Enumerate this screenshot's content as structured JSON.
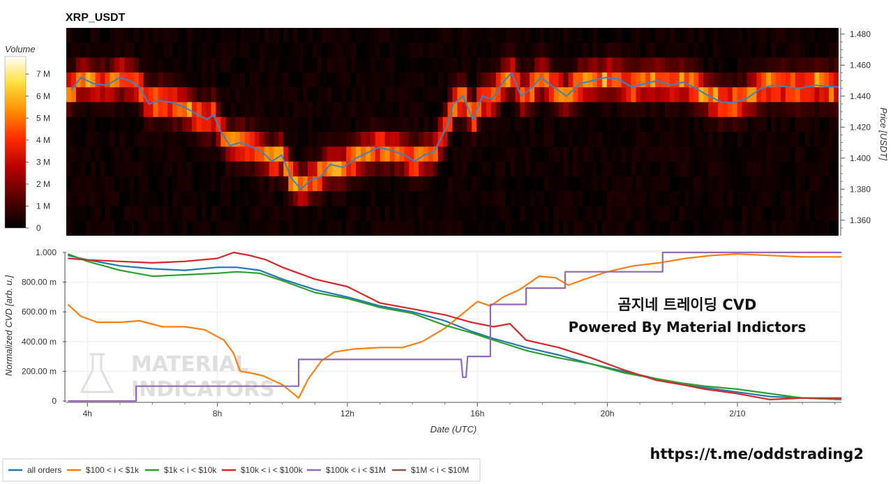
{
  "chart_data": [
    {
      "type": "heatmap",
      "title": "XRP_USDT",
      "ylabel": "Price [USDT]",
      "y_ticks": [
        "1.480",
        "1.460",
        "1.440",
        "1.420",
        "1.400",
        "1.380",
        "1.360"
      ],
      "y_tick_values": [
        1.48,
        1.46,
        1.44,
        1.42,
        1.4,
        1.38,
        1.36
      ],
      "ylim": [
        1.35,
        1.484
      ],
      "colorbar": {
        "label": "Volume",
        "ticks": [
          "7 M",
          "6 M",
          "5 M",
          "4 M",
          "3 M",
          "2 M",
          "1 M",
          "0"
        ],
        "tick_values": [
          7,
          6,
          5,
          4,
          3,
          2,
          1,
          0
        ],
        "range": [
          0,
          7.8
        ],
        "colormap": [
          "#000000",
          "#5a0000",
          "#b50000",
          "#ff2a00",
          "#ff8c00",
          "#ffe040",
          "#ffffff"
        ]
      },
      "price_line": {
        "color": "#3b82c4",
        "hours": [
          3.5,
          3.8,
          4.2,
          4.6,
          5.0,
          5.3,
          5.6,
          5.9,
          6.2,
          6.6,
          7.0,
          7.4,
          7.7,
          7.9,
          8.1,
          8.4,
          8.7,
          9.0,
          9.4,
          9.7,
          10.0,
          10.3,
          10.6,
          10.9,
          11.2,
          11.5,
          11.9,
          12.3,
          12.7,
          13.0,
          13.4,
          13.8,
          14.1,
          14.4,
          14.7,
          14.9,
          15.1,
          15.3,
          15.6,
          15.9,
          16.2,
          16.5,
          16.8,
          17.1,
          17.4,
          17.7,
          18.0,
          18.4,
          18.8,
          19.2,
          19.6,
          20.0,
          20.4,
          20.8,
          21.2,
          21.6,
          22.0,
          22.4,
          22.8,
          23.2,
          23.6,
          24.0,
          24.4,
          24.8,
          25.2,
          25.6,
          26.0,
          26.5,
          27.0,
          27.3
        ],
        "prices": [
          1.444,
          1.452,
          1.448,
          1.447,
          1.452,
          1.45,
          1.446,
          1.435,
          1.437,
          1.436,
          1.433,
          1.428,
          1.425,
          1.428,
          1.418,
          1.408,
          1.41,
          1.408,
          1.404,
          1.398,
          1.402,
          1.387,
          1.38,
          1.386,
          1.388,
          1.396,
          1.394,
          1.4,
          1.404,
          1.407,
          1.405,
          1.402,
          1.398,
          1.402,
          1.404,
          1.412,
          1.42,
          1.435,
          1.44,
          1.425,
          1.44,
          1.438,
          1.448,
          1.455,
          1.44,
          1.445,
          1.452,
          1.446,
          1.44,
          1.448,
          1.45,
          1.452,
          1.451,
          1.446,
          1.448,
          1.45,
          1.447,
          1.449,
          1.445,
          1.44,
          1.436,
          1.436,
          1.439,
          1.445,
          1.447,
          1.446,
          1.445,
          1.447,
          1.446,
          1.446
        ]
      }
    },
    {
      "type": "line",
      "xlabel": "Date (UTC)",
      "ylabel": "Normalized CVD [arb. u.]",
      "x_ticks": [
        "4h",
        "8h",
        "12h",
        "16h",
        "20h",
        "2/10"
      ],
      "x_tick_values": [
        4,
        8,
        12,
        16,
        20,
        24
      ],
      "xlim": [
        3.35,
        27.2
      ],
      "y_ticks": [
        "1.000",
        "800.00 m",
        "600.00 m",
        "400.00 m",
        "200.00 m",
        "0"
      ],
      "y_tick_values": [
        1.0,
        0.8,
        0.6,
        0.4,
        0.2,
        0.0
      ],
      "ylim": [
        0,
        1.0
      ],
      "grid": true,
      "series": [
        {
          "name": "all orders",
          "color": "#1f77b4",
          "x": [
            3.4,
            4.0,
            5.0,
            6.0,
            7.0,
            8.0,
            8.6,
            9.3,
            10.0,
            11.0,
            12.0,
            13.0,
            14.0,
            15.0,
            15.8,
            16.5,
            17.5,
            18.5,
            19.5,
            20.5,
            21.5,
            22.3,
            23.0,
            24.0,
            25.0,
            26.0,
            27.2
          ],
          "y": [
            0.98,
            0.95,
            0.91,
            0.89,
            0.88,
            0.9,
            0.9,
            0.88,
            0.82,
            0.75,
            0.7,
            0.64,
            0.6,
            0.54,
            0.47,
            0.42,
            0.36,
            0.31,
            0.25,
            0.2,
            0.15,
            0.11,
            0.09,
            0.06,
            0.03,
            0.02,
            0.01
          ]
        },
        {
          "name": "$100 < i < $1k",
          "color": "#ff7f0e",
          "x": [
            3.4,
            3.8,
            4.3,
            5.0,
            5.6,
            6.3,
            7.0,
            7.6,
            8.2,
            8.5,
            8.7,
            9.0,
            9.4,
            10.0,
            10.5,
            10.8,
            11.2,
            11.6,
            12.2,
            13.0,
            13.7,
            14.3,
            15.0,
            15.5,
            16.0,
            16.4,
            16.8,
            17.3,
            17.9,
            18.4,
            18.8,
            19.3,
            20.0,
            20.8,
            21.6,
            22.4,
            23.2,
            24.0,
            25.0,
            26.0,
            27.2
          ],
          "y": [
            0.65,
            0.57,
            0.53,
            0.53,
            0.54,
            0.5,
            0.5,
            0.48,
            0.41,
            0.32,
            0.2,
            0.19,
            0.17,
            0.11,
            0.02,
            0.15,
            0.27,
            0.33,
            0.35,
            0.36,
            0.36,
            0.4,
            0.49,
            0.58,
            0.67,
            0.64,
            0.7,
            0.75,
            0.84,
            0.83,
            0.78,
            0.82,
            0.87,
            0.91,
            0.93,
            0.96,
            0.98,
            0.99,
            0.98,
            0.97,
            0.97
          ]
        },
        {
          "name": "$1k < i < $10k",
          "color": "#2ca02c",
          "x": [
            3.4,
            4.0,
            5.0,
            6.0,
            7.0,
            8.0,
            8.6,
            9.3,
            10.0,
            11.0,
            12.0,
            13.0,
            14.0,
            15.0,
            15.8,
            16.5,
            17.5,
            18.5,
            19.5,
            20.5,
            21.5,
            22.3,
            23.0,
            24.0,
            25.0,
            26.0,
            27.2
          ],
          "y": [
            0.99,
            0.94,
            0.88,
            0.84,
            0.85,
            0.86,
            0.87,
            0.86,
            0.81,
            0.73,
            0.69,
            0.63,
            0.59,
            0.51,
            0.46,
            0.41,
            0.34,
            0.29,
            0.25,
            0.19,
            0.15,
            0.12,
            0.1,
            0.08,
            0.05,
            0.02,
            0.01
          ]
        },
        {
          "name": "$10k < i < $100k",
          "color": "#d62728",
          "x": [
            3.4,
            4.0,
            5.0,
            6.0,
            7.0,
            8.0,
            8.5,
            9.0,
            9.5,
            10.0,
            11.0,
            12.0,
            13.0,
            14.0,
            15.0,
            15.8,
            16.5,
            17.0,
            17.5,
            18.5,
            19.5,
            20.5,
            21.5,
            22.3,
            23.0,
            24.0,
            25.0,
            26.0,
            27.2
          ],
          "y": [
            0.96,
            0.95,
            0.94,
            0.93,
            0.94,
            0.96,
            1.0,
            0.98,
            0.95,
            0.9,
            0.82,
            0.77,
            0.66,
            0.62,
            0.58,
            0.53,
            0.5,
            0.52,
            0.41,
            0.36,
            0.29,
            0.21,
            0.14,
            0.11,
            0.08,
            0.05,
            0.01,
            0.02,
            0.02
          ]
        },
        {
          "name": "$100k < i < $1M",
          "color": "#9467bd",
          "x": [
            3.4,
            5.5,
            5.5,
            10.5,
            10.5,
            15.5,
            15.55,
            15.65,
            15.7,
            16.4,
            16.4,
            17.5,
            17.5,
            18.7,
            18.7,
            21.7,
            21.7,
            27.2
          ],
          "y": [
            0.0,
            0.0,
            0.1,
            0.1,
            0.28,
            0.28,
            0.16,
            0.16,
            0.3,
            0.3,
            0.65,
            0.65,
            0.76,
            0.76,
            0.87,
            0.87,
            1.0,
            1.0
          ]
        },
        {
          "name": "$1M < i < $10M",
          "color": "#8c564b",
          "x": [],
          "y": []
        }
      ],
      "annotations": [
        "곰지네 트레이딩 CVD",
        "Powered By Material Indictors"
      ],
      "watermark": [
        "MATERIAL",
        "INDICATORS"
      ]
    }
  ],
  "footer": {
    "url": "https://t.me/oddstrading2"
  }
}
